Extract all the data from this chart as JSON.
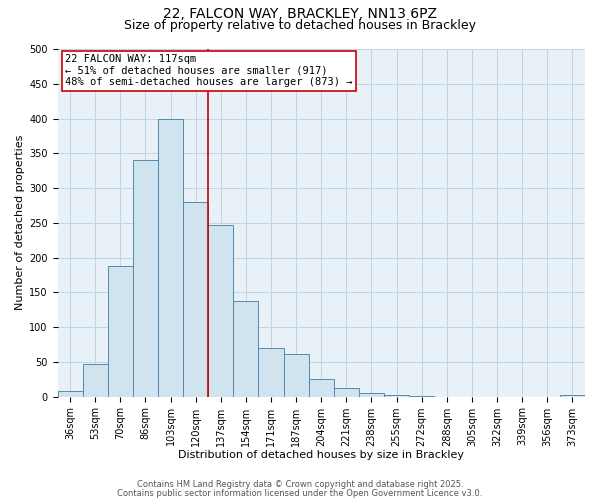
{
  "title": "22, FALCON WAY, BRACKLEY, NN13 6PZ",
  "subtitle": "Size of property relative to detached houses in Brackley",
  "xlabel": "Distribution of detached houses by size in Brackley",
  "ylabel": "Number of detached properties",
  "categories": [
    "36sqm",
    "53sqm",
    "70sqm",
    "86sqm",
    "103sqm",
    "120sqm",
    "137sqm",
    "154sqm",
    "171sqm",
    "187sqm",
    "204sqm",
    "221sqm",
    "238sqm",
    "255sqm",
    "272sqm",
    "288sqm",
    "305sqm",
    "322sqm",
    "339sqm",
    "356sqm",
    "373sqm"
  ],
  "bar_values": [
    8,
    47,
    188,
    340,
    400,
    280,
    247,
    137,
    70,
    62,
    25,
    13,
    5,
    2,
    1,
    0,
    0,
    0,
    0,
    0,
    3
  ],
  "bar_color": "#d0e4f0",
  "bar_edge_color": "#5588aa",
  "vline_color": "#cc0000",
  "annotation_text": "22 FALCON WAY: 117sqm\n← 51% of detached houses are smaller (917)\n48% of semi-detached houses are larger (873) →",
  "annotation_box_color": "#ffffff",
  "annotation_box_edge": "#cc0000",
  "ylim": [
    0,
    500
  ],
  "yticks": [
    0,
    50,
    100,
    150,
    200,
    250,
    300,
    350,
    400,
    450,
    500
  ],
  "footer1": "Contains HM Land Registry data © Crown copyright and database right 2025.",
  "footer2": "Contains public sector information licensed under the Open Government Licence v3.0.",
  "bg_color": "#ffffff",
  "grid_color": "#c0d4e4",
  "title_fontsize": 10,
  "subtitle_fontsize": 9,
  "label_fontsize": 8,
  "tick_fontsize": 7,
  "annotation_fontsize": 7.5,
  "footer_fontsize": 6
}
